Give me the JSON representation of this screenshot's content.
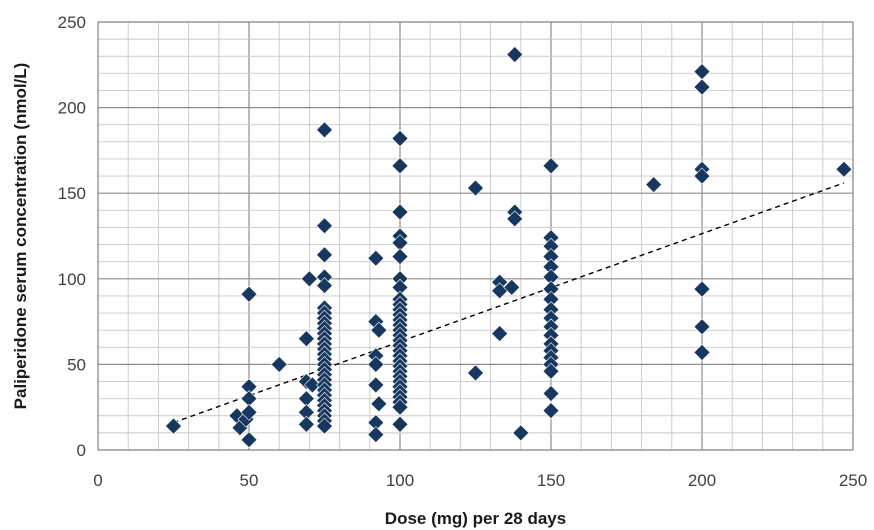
{
  "chart_data": {
    "type": "scatter",
    "title": "",
    "xlabel": "Dose (mg) per 28 days",
    "ylabel": "Paliperidone serum concentration (nmol/L)",
    "xlim": [
      0,
      250
    ],
    "ylim": [
      0,
      250
    ],
    "x_ticks": [
      0,
      50,
      100,
      150,
      200,
      250
    ],
    "y_ticks": [
      0,
      50,
      100,
      150,
      200,
      250
    ],
    "grid": true,
    "legend": "none",
    "marker": "diamond",
    "marker_color": "#17375e",
    "trendline": {
      "style": "dashed",
      "color": "#000000",
      "x": [
        25,
        247
      ],
      "y": [
        16,
        156
      ]
    },
    "points": [
      [
        25,
        14
      ],
      [
        46,
        20
      ],
      [
        47,
        13
      ],
      [
        49,
        18
      ],
      [
        50,
        91
      ],
      [
        50,
        37
      ],
      [
        50,
        30
      ],
      [
        50,
        22
      ],
      [
        50,
        6
      ],
      [
        60,
        50
      ],
      [
        69,
        40
      ],
      [
        69,
        65
      ],
      [
        69,
        30
      ],
      [
        69,
        22
      ],
      [
        69,
        15
      ],
      [
        70,
        100
      ],
      [
        71,
        38
      ],
      [
        75,
        187
      ],
      [
        75,
        131
      ],
      [
        75,
        114
      ],
      [
        75,
        101
      ],
      [
        75,
        96
      ],
      [
        75,
        83
      ],
      [
        75,
        80
      ],
      [
        75,
        77
      ],
      [
        75,
        74
      ],
      [
        75,
        71
      ],
      [
        75,
        68
      ],
      [
        75,
        65
      ],
      [
        75,
        62
      ],
      [
        75,
        59
      ],
      [
        75,
        56
      ],
      [
        75,
        53
      ],
      [
        75,
        50
      ],
      [
        75,
        47
      ],
      [
        75,
        44
      ],
      [
        75,
        41
      ],
      [
        75,
        38
      ],
      [
        75,
        35
      ],
      [
        75,
        32
      ],
      [
        75,
        29
      ],
      [
        75,
        26
      ],
      [
        75,
        23
      ],
      [
        75,
        20
      ],
      [
        75,
        17
      ],
      [
        75,
        14
      ],
      [
        92,
        112
      ],
      [
        92,
        75
      ],
      [
        92,
        55
      ],
      [
        92,
        50
      ],
      [
        92,
        38
      ],
      [
        92,
        16
      ],
      [
        92,
        9
      ],
      [
        93,
        70
      ],
      [
        93,
        27
      ],
      [
        100,
        182
      ],
      [
        100,
        166
      ],
      [
        100,
        139
      ],
      [
        100,
        125
      ],
      [
        100,
        121
      ],
      [
        100,
        113
      ],
      [
        100,
        100
      ],
      [
        100,
        95
      ],
      [
        100,
        88
      ],
      [
        100,
        85
      ],
      [
        100,
        82
      ],
      [
        100,
        79
      ],
      [
        100,
        76
      ],
      [
        100,
        73
      ],
      [
        100,
        70
      ],
      [
        100,
        67
      ],
      [
        100,
        64
      ],
      [
        100,
        61
      ],
      [
        100,
        58
      ],
      [
        100,
        55
      ],
      [
        100,
        52
      ],
      [
        100,
        49
      ],
      [
        100,
        46
      ],
      [
        100,
        43
      ],
      [
        100,
        40
      ],
      [
        100,
        37
      ],
      [
        100,
        34
      ],
      [
        100,
        31
      ],
      [
        100,
        28
      ],
      [
        100,
        25
      ],
      [
        100,
        15
      ],
      [
        125,
        153
      ],
      [
        125,
        45
      ],
      [
        133,
        98
      ],
      [
        133,
        93
      ],
      [
        133,
        68
      ],
      [
        137,
        95
      ],
      [
        138,
        231
      ],
      [
        138,
        139
      ],
      [
        138,
        135
      ],
      [
        140,
        10
      ],
      [
        150,
        166
      ],
      [
        150,
        124
      ],
      [
        150,
        119
      ],
      [
        150,
        113
      ],
      [
        150,
        107
      ],
      [
        150,
        101
      ],
      [
        150,
        94
      ],
      [
        150,
        88
      ],
      [
        150,
        82
      ],
      [
        150,
        77
      ],
      [
        150,
        72
      ],
      [
        150,
        67
      ],
      [
        150,
        62
      ],
      [
        150,
        58
      ],
      [
        150,
        54
      ],
      [
        150,
        50
      ],
      [
        150,
        46
      ],
      [
        150,
        33
      ],
      [
        150,
        23
      ],
      [
        184,
        155
      ],
      [
        200,
        221
      ],
      [
        200,
        212
      ],
      [
        200,
        164
      ],
      [
        200,
        160
      ],
      [
        200,
        94
      ],
      [
        200,
        72
      ],
      [
        200,
        57
      ],
      [
        247,
        164
      ]
    ]
  }
}
